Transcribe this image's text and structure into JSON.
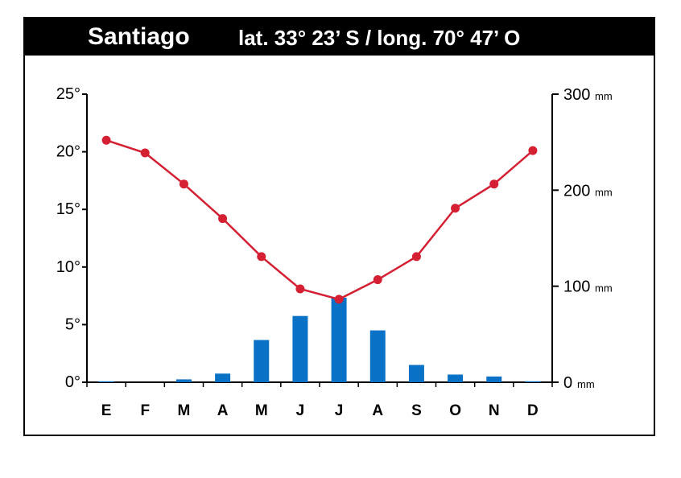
{
  "chart_data": {
    "type": "bar+line",
    "title": "Santiago",
    "subtitle": "lat. 33° 23’ S / long. 70° 47’ O",
    "categories": [
      "E",
      "F",
      "M",
      "A",
      "M",
      "J",
      "J",
      "A",
      "S",
      "O",
      "N",
      "D"
    ],
    "series": [
      {
        "values": [
          1,
          0,
          3,
          9,
          44,
          69,
          88,
          54,
          18,
          8,
          6,
          1
        ],
        "axis": "right",
        "kind": "bar",
        "unit": "mm"
      },
      {
        "values": [
          21.0,
          19.9,
          17.2,
          14.2,
          10.9,
          8.1,
          7.2,
          8.9,
          10.9,
          15.1,
          17.2,
          20.1
        ],
        "axis": "left",
        "kind": "line",
        "unit": "°"
      }
    ],
    "y_left": {
      "ylim": [
        0,
        25
      ],
      "ticks": [
        "0°",
        "5°",
        "10°",
        "15°",
        "20°",
        "25°"
      ]
    },
    "y_right": {
      "ylim": [
        0,
        300
      ],
      "ticks": [
        "0",
        "100",
        "200",
        "300"
      ],
      "unit": "mm"
    },
    "colors": {
      "line": "#d42032",
      "bars": "#0a72c6",
      "title_bar": "#000000"
    },
    "grid": false,
    "legend": "none"
  }
}
